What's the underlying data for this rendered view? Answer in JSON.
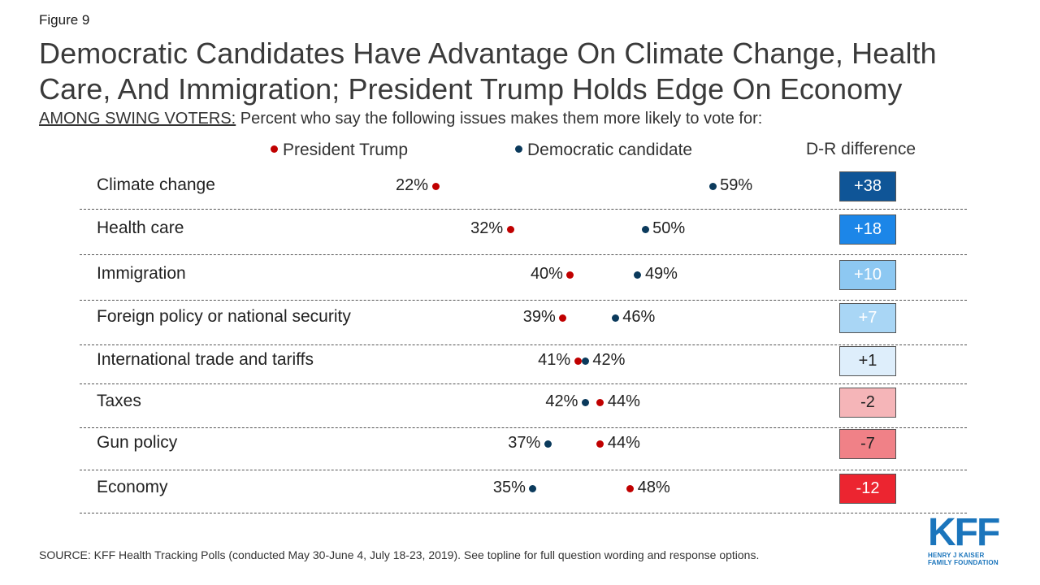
{
  "figure_label": "Figure 9",
  "title": "Democratic Candidates Have Advantage On Climate Change, Health Care, And Immigration; President Trump Holds Edge On Economy",
  "subtitle_prefix": "AMONG SWING VOTERS:",
  "subtitle_text": " Percent who say the following issues makes them more likely to vote for:",
  "source": "SOURCE: KFF Health Tracking Polls (conducted May 30-June 4, July 18-23, 2019). See topline for full question wording and response options.",
  "logo": {
    "text": "KFF",
    "org_line1": "HENRY J KAISER",
    "org_line2": "FAMILY FOUNDATION"
  },
  "colors": {
    "trump": "#c00000",
    "dem": "#0b3a5c"
  },
  "chart_data": {
    "type": "scatter",
    "title": "",
    "diff_header": "D-R difference",
    "series": [
      {
        "name": "President Trump",
        "color": "#c00000"
      },
      {
        "name": "Democratic candidate",
        "color": "#0b3a5c"
      }
    ],
    "rows": [
      {
        "label": "Climate change",
        "trump": 22,
        "dem": 59,
        "diff": "+38",
        "diff_bg": "#0f5597",
        "diff_fg": "#ffffff"
      },
      {
        "label": "Health care",
        "trump": 32,
        "dem": 50,
        "diff": "+18",
        "diff_bg": "#1c86e8",
        "diff_fg": "#ffffff"
      },
      {
        "label": "Immigration",
        "trump": 40,
        "dem": 49,
        "diff": "+10",
        "diff_bg": "#8dc8f2",
        "diff_fg": "#ffffff"
      },
      {
        "label": "Foreign policy or national security",
        "trump": 39,
        "dem": 46,
        "diff": "+7",
        "diff_bg": "#a9d6f5",
        "diff_fg": "#ffffff"
      },
      {
        "label": "International trade and tariffs",
        "trump": 41,
        "dem": 42,
        "diff": "+1",
        "diff_bg": "#deeefb",
        "diff_fg": "#222222"
      },
      {
        "label": "Taxes",
        "trump": 44,
        "dem": 42,
        "diff": "-2",
        "diff_bg": "#f5b5b8",
        "diff_fg": "#222222"
      },
      {
        "label": "Gun policy",
        "trump": 44,
        "dem": 37,
        "diff": "-7",
        "diff_bg": "#f08187",
        "diff_fg": "#222222"
      },
      {
        "label": "Economy",
        "trump": 48,
        "dem": 35,
        "diff": "-12",
        "diff_bg": "#ec2530",
        "diff_fg": "#ffffff"
      }
    ]
  }
}
